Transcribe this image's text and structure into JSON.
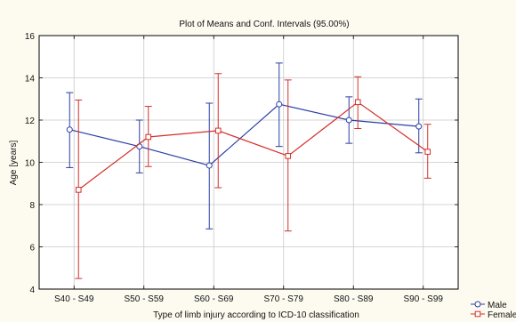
{
  "chart_data": {
    "type": "line",
    "title": "Plot of Means and Conf. Intervals (95.00%)",
    "xlabel": "Type of limb injury according to ICD-10 classification",
    "ylabel": "Age [years]",
    "ylim": [
      4,
      16
    ],
    "yticks": [
      4,
      6,
      8,
      10,
      12,
      14,
      16
    ],
    "grid": true,
    "legend_position": "bottom-right",
    "categories": [
      "S40 - S49",
      "S50 - S59",
      "S60 - S69",
      "S70 - S79",
      "S80 - S89",
      "S90 - S99"
    ],
    "series": [
      {
        "name": "Male",
        "color": "#2b3fa6",
        "marker": "circle",
        "mean": [
          11.55,
          10.75,
          9.85,
          12.75,
          12.0,
          11.7
        ],
        "ci_low": [
          9.75,
          9.5,
          6.85,
          10.75,
          10.9,
          10.45
        ],
        "ci_high": [
          13.3,
          12.0,
          12.8,
          14.7,
          13.1,
          13.0
        ]
      },
      {
        "name": "Female",
        "color": "#d4302b",
        "marker": "square",
        "mean": [
          8.7,
          11.2,
          11.5,
          10.3,
          12.85,
          10.5
        ],
        "ci_low": [
          4.5,
          9.8,
          8.8,
          6.75,
          11.6,
          9.25
        ],
        "ci_high": [
          12.95,
          12.65,
          14.2,
          13.9,
          14.05,
          11.8
        ]
      }
    ]
  }
}
